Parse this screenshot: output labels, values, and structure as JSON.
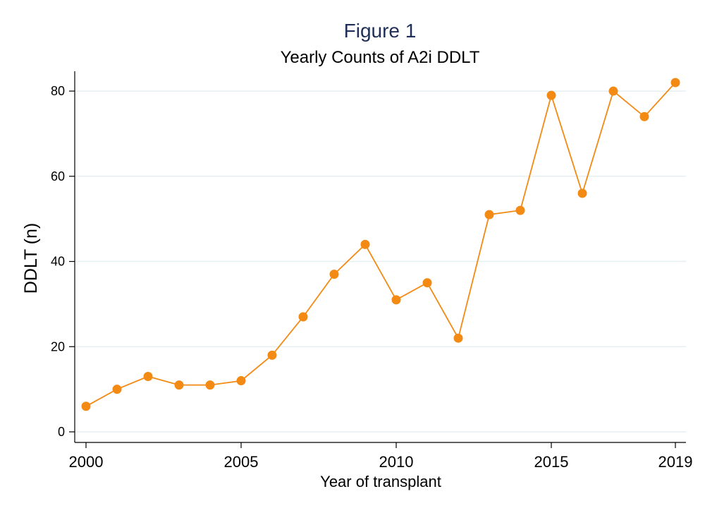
{
  "chart_data": {
    "type": "line",
    "title": "Figure 1",
    "subtitle": "Yearly Counts of A2i DDLT",
    "xlabel": "Year of transplant",
    "ylabel": "DDLT (n)",
    "xlim": [
      2000,
      2019
    ],
    "ylim": [
      0,
      82
    ],
    "xticks": [
      2000,
      2005,
      2010,
      2015,
      2019
    ],
    "yticks": [
      0,
      20,
      40,
      60,
      80
    ],
    "grid": true,
    "legend": "none",
    "series": [
      {
        "color": "#f28a13",
        "x": [
          2000,
          2001,
          2002,
          2003,
          2004,
          2005,
          2006,
          2007,
          2008,
          2009,
          2010,
          2011,
          2012,
          2013,
          2014,
          2015,
          2016,
          2017,
          2018,
          2019
        ],
        "y": [
          6,
          10,
          13,
          11,
          11,
          12,
          18,
          27,
          37,
          44,
          31,
          35,
          22,
          51,
          52,
          79,
          56,
          80,
          74,
          82
        ]
      }
    ],
    "colors": {
      "title": "#1f2f57",
      "grid": "#e6eff2",
      "axis": "#000000"
    }
  }
}
